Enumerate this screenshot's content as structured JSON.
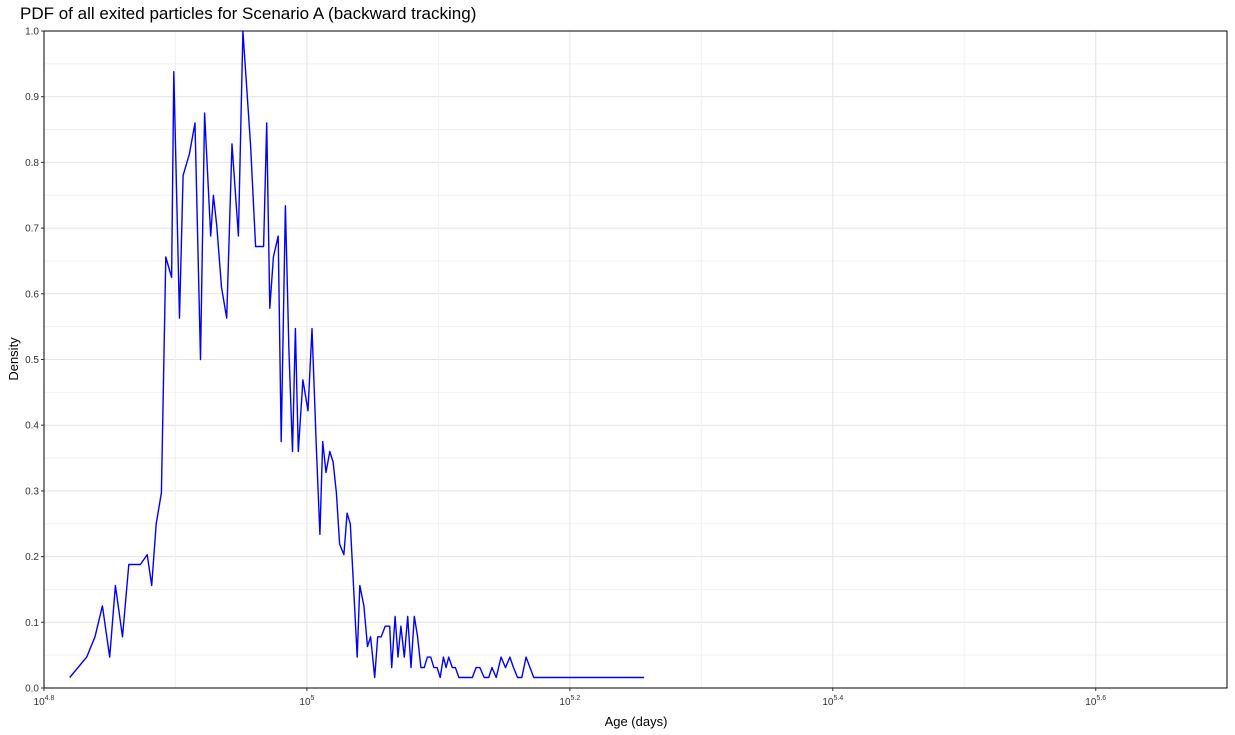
{
  "title": "PDF of all exited particles for Scenario A (backward tracking)",
  "chart_data": {
    "type": "line",
    "title": "PDF of all exited particles for Scenario A (backward tracking)",
    "xlabel": "Age (days)",
    "ylabel": "Density",
    "x_scale": "log10",
    "xlim": [
      63100,
      501000
    ],
    "ylim": [
      0,
      1
    ],
    "grid": true,
    "line_color": "#0000ff",
    "x_ticks": [
      {
        "base": "10",
        "exp": "4.8",
        "value": 63096
      },
      {
        "base": "10",
        "exp": "5",
        "value": 100000
      },
      {
        "base": "10",
        "exp": "5.2",
        "value": 158489
      },
      {
        "base": "10",
        "exp": "5.4",
        "value": 251189
      },
      {
        "base": "10",
        "exp": "5.6",
        "value": 398107
      }
    ],
    "y_ticks": [
      "0.0",
      "0.1",
      "0.2",
      "0.3",
      "0.4",
      "0.5",
      "0.6",
      "0.7",
      "0.8",
      "0.9",
      "1.0"
    ],
    "series": [
      {
        "x": [
          66000,
          68000,
          69000,
          69900,
          70800,
          71500,
          72400,
          73200,
          74100,
          74700,
          75600,
          76200,
          76800,
          77500,
          78100,
          78900,
          79200,
          80000,
          80500,
          81400,
          82200,
          83000,
          83600,
          84500,
          84900,
          85400,
          86100,
          86900,
          87700,
          88700,
          89400,
          90600,
          91400,
          92100,
          92700,
          93200,
          93700,
          94300,
          95100,
          95600,
          96300,
          96900,
          97500,
          98000,
          98500,
          99300,
          100200,
          100900,
          101700,
          102300,
          102800,
          103400,
          104100,
          104700,
          105300,
          105900,
          106700,
          107300,
          107900,
          108500,
          109200,
          109700,
          110500,
          111200,
          111800,
          112600,
          113200,
          113900,
          114700,
          115600,
          116000,
          116700,
          117300,
          117900,
          118600,
          119300,
          120000,
          120700,
          121400,
          122100,
          122800,
          123500,
          124200,
          124900,
          125600,
          126300,
          127000,
          127600,
          128200,
          129000,
          129700,
          130500,
          131400,
          132000,
          132700,
          133600,
          134500,
          135400,
          136400,
          137500,
          138300,
          139300,
          140500,
          141600,
          142700,
          143600,
          144600,
          145700,
          146800,
          147800,
          148800,
          150000,
          151200,
          152300,
          153500,
          154600,
          155800,
          157000,
          158300,
          159500,
          160800,
          162000,
          163300,
          164500,
          165800,
          167100,
          168400,
          169800,
          171700,
          173500,
          175200,
          178000,
          180500
        ],
        "y": [
          0.016,
          0.047,
          0.078,
          0.125,
          0.047,
          0.156,
          0.078,
          0.188,
          0.188,
          0.188,
          0.203,
          0.156,
          0.25,
          0.297,
          0.656,
          0.625,
          0.938,
          0.563,
          0.78,
          0.813,
          0.86,
          0.5,
          0.875,
          0.688,
          0.75,
          0.703,
          0.61,
          0.563,
          0.828,
          0.688,
          1.0,
          0.828,
          0.672,
          0.672,
          0.672,
          0.86,
          0.578,
          0.656,
          0.688,
          0.375,
          0.734,
          0.515,
          0.36,
          0.547,
          0.36,
          0.469,
          0.422,
          0.547,
          0.36,
          0.234,
          0.375,
          0.328,
          0.36,
          0.344,
          0.297,
          0.219,
          0.203,
          0.266,
          0.25,
          0.156,
          0.047,
          0.156,
          0.125,
          0.063,
          0.078,
          0.016,
          0.078,
          0.078,
          0.094,
          0.094,
          0.031,
          0.109,
          0.047,
          0.094,
          0.047,
          0.109,
          0.031,
          0.109,
          0.078,
          0.031,
          0.031,
          0.047,
          0.047,
          0.031,
          0.031,
          0.016,
          0.047,
          0.031,
          0.047,
          0.031,
          0.031,
          0.016,
          0.016,
          0.016,
          0.016,
          0.016,
          0.031,
          0.031,
          0.016,
          0.016,
          0.031,
          0.016,
          0.047,
          0.031,
          0.047,
          0.031,
          0.016,
          0.016,
          0.047,
          0.031,
          0.016,
          0.016,
          0.016,
          0.016,
          0.016,
          0.016,
          0.016,
          0.016,
          0.016,
          0.016,
          0.016,
          0.016,
          0.016,
          0.016,
          0.016,
          0.016,
          0.016,
          0.016,
          0.016,
          0.016,
          0.016,
          0.016,
          0.016
        ]
      }
    ]
  }
}
